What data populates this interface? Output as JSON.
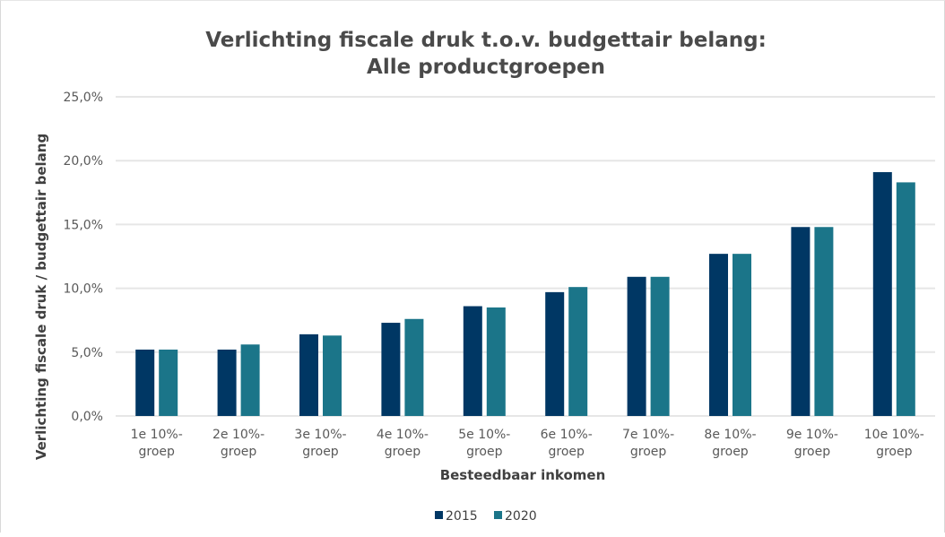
{
  "chart_data": {
    "type": "bar",
    "title_line1": "Verlichting fiscale druk t.o.v. budgettair belang:",
    "title_line2": "Alle productgroepen",
    "xlabel": "Besteedbaar inkomen",
    "ylabel": "Verlichting fiscale druk / budgettair belang",
    "ylim": [
      0,
      25
    ],
    "yticks": [
      "0,0%",
      "5,0%",
      "10,0%",
      "15,0%",
      "20,0%",
      "25,0%"
    ],
    "categories": [
      [
        "1e 10%-",
        "groep"
      ],
      [
        "2e 10%-",
        "groep"
      ],
      [
        "3e 10%-",
        "groep"
      ],
      [
        "4e 10%-",
        "groep"
      ],
      [
        "5e 10%-",
        "groep"
      ],
      [
        "6e 10%-",
        "groep"
      ],
      [
        "7e 10%-",
        "groep"
      ],
      [
        "8e 10%-",
        "groep"
      ],
      [
        "9e 10%-",
        "groep"
      ],
      [
        "10e 10%-",
        "groep"
      ]
    ],
    "series": [
      {
        "name": "2015",
        "color": "#003764",
        "values": [
          5.2,
          5.2,
          6.4,
          7.3,
          8.6,
          9.7,
          10.9,
          12.7,
          14.8,
          19.1
        ]
      },
      {
        "name": "2020",
        "color": "#1b7589",
        "values": [
          5.2,
          5.6,
          6.3,
          7.6,
          8.5,
          10.1,
          10.9,
          12.7,
          14.8,
          18.3
        ]
      }
    ],
    "grid": true,
    "legend_position": "bottom"
  }
}
